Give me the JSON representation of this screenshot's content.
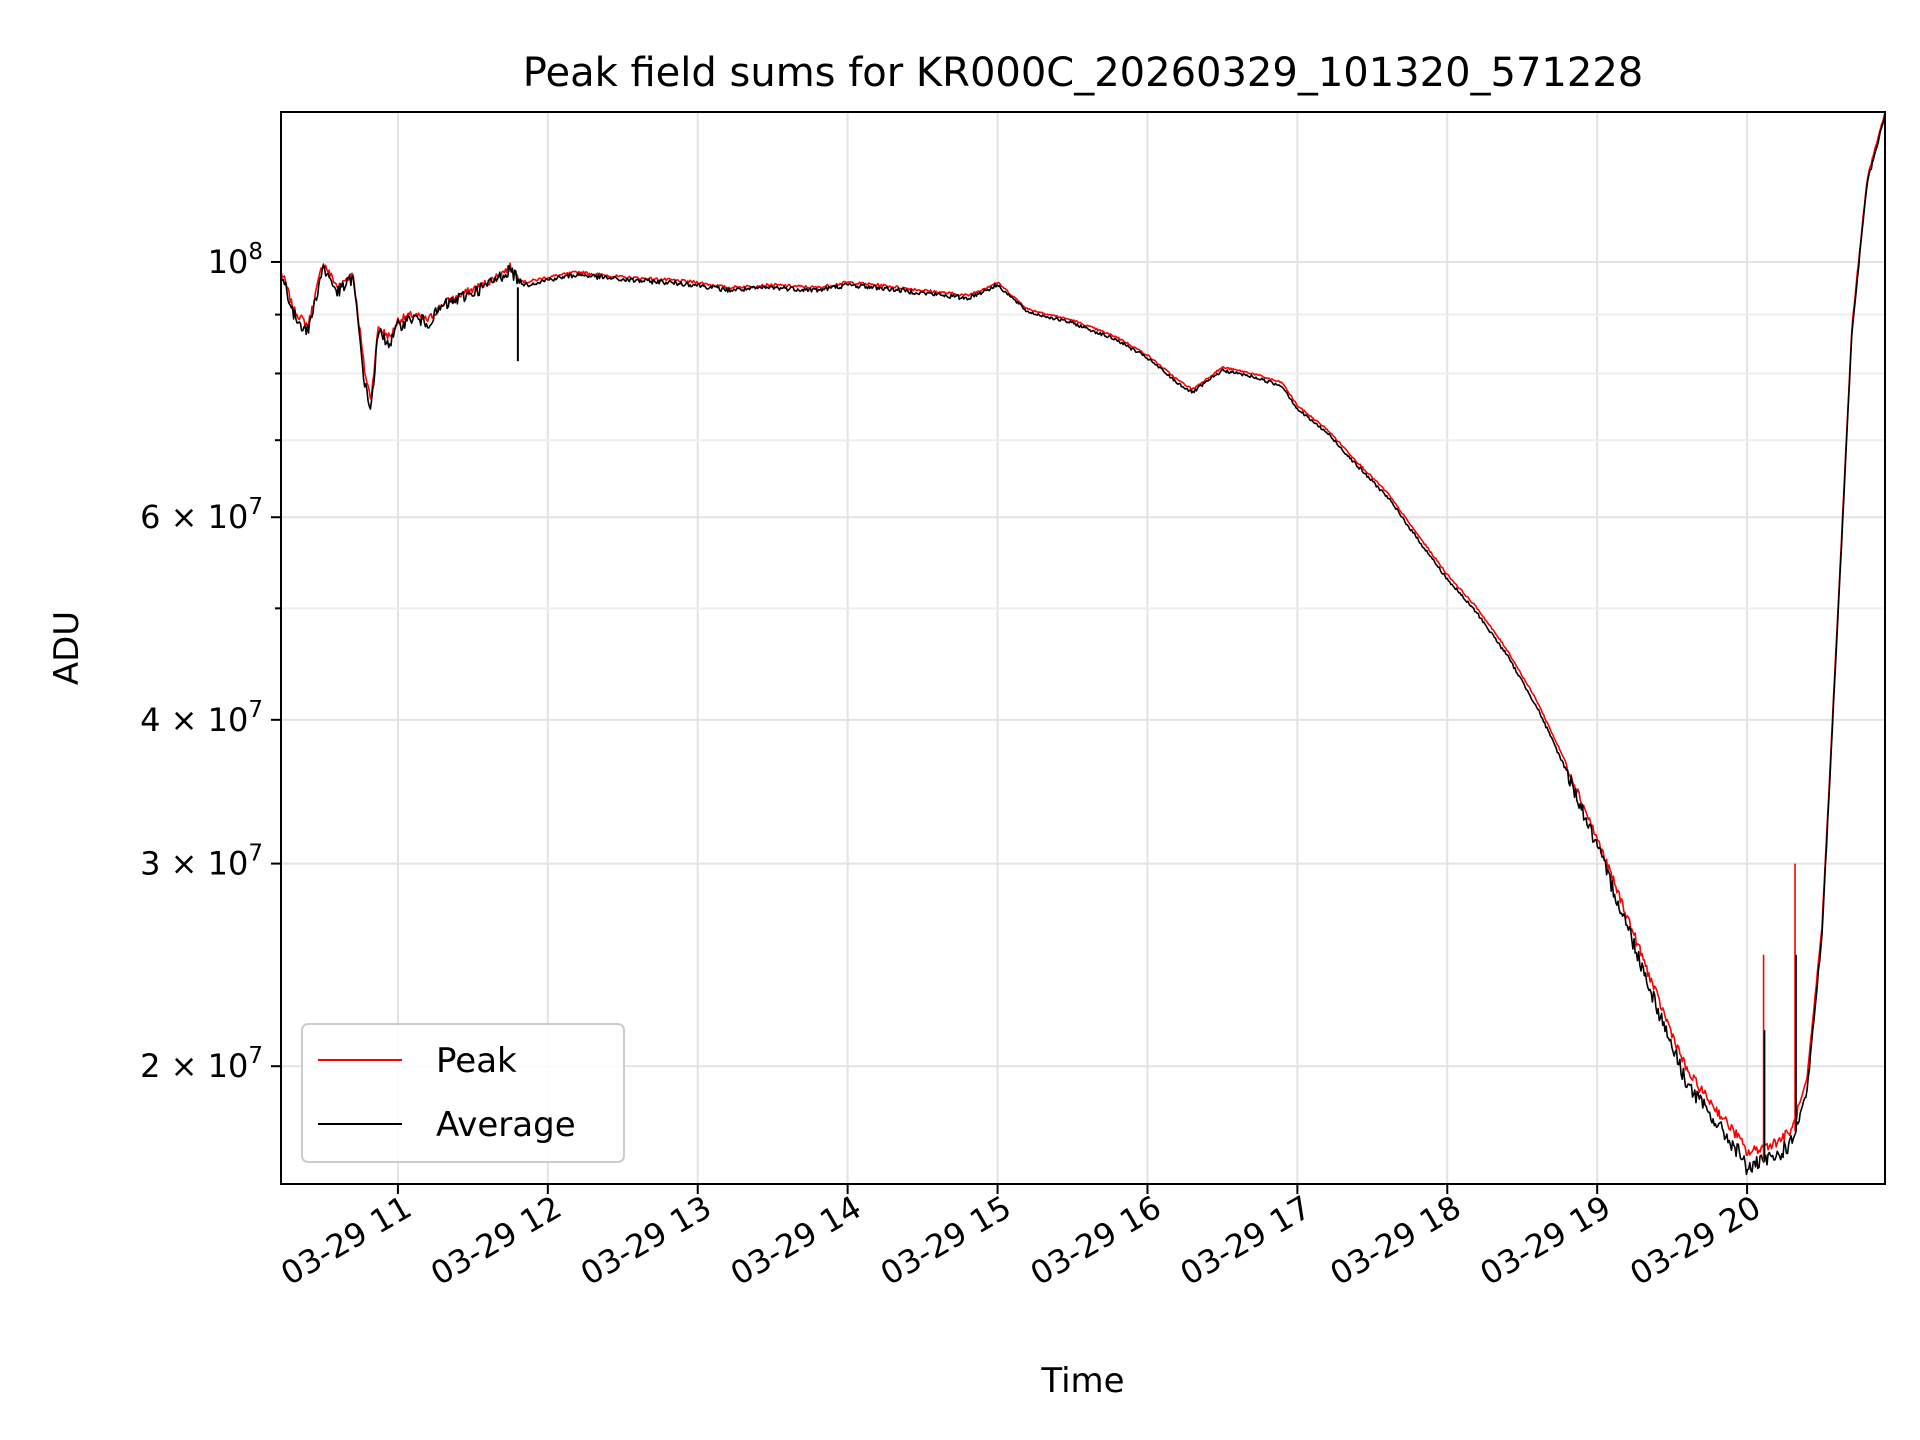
{
  "chart_data": {
    "type": "line",
    "title": "Peak field sums for KR000C_20260329_101320_571228",
    "xlabel": "Time",
    "ylabel": "ADU",
    "x_unit": "hours (time of day on 03-29)",
    "xlim": [
      10.22,
      20.92
    ],
    "ylim": [
      15800000,
      135000000
    ],
    "yscale": "log",
    "grid": true,
    "legend_position": "lower-left",
    "x_ticks": [
      {
        "value": 11,
        "label": "03-29 11"
      },
      {
        "value": 12,
        "label": "03-29 12"
      },
      {
        "value": 13,
        "label": "03-29 13"
      },
      {
        "value": 14,
        "label": "03-29 14"
      },
      {
        "value": 15,
        "label": "03-29 15"
      },
      {
        "value": 16,
        "label": "03-29 16"
      },
      {
        "value": 17,
        "label": "03-29 17"
      },
      {
        "value": 18,
        "label": "03-29 18"
      },
      {
        "value": 19,
        "label": "03-29 19"
      },
      {
        "value": 20,
        "label": "03-29 20"
      }
    ],
    "y_ticks_major": [
      {
        "value": 20000000,
        "base": "2 × 10",
        "exp": "7"
      },
      {
        "value": 30000000,
        "base": "3 × 10",
        "exp": "7"
      },
      {
        "value": 40000000,
        "base": "4 × 10",
        "exp": "7"
      },
      {
        "value": 60000000,
        "base": "6 × 10",
        "exp": "7"
      },
      {
        "value": 100000000,
        "base": "10",
        "exp": "8"
      }
    ],
    "y_ticks_minor": [
      50000000,
      70000000,
      80000000,
      90000000
    ],
    "series": [
      {
        "name": "Peak",
        "color": "#ff0000",
        "x": [
          10.22,
          10.25,
          10.3,
          10.4,
          10.5,
          10.6,
          10.7,
          10.78,
          10.82,
          10.87,
          10.9,
          10.95,
          11.0,
          11.1,
          11.2,
          11.3,
          11.45,
          11.6,
          11.75,
          11.8,
          11.85,
          12.0,
          12.2,
          12.5,
          12.8,
          13.0,
          13.2,
          13.5,
          13.8,
          14.0,
          14.2,
          14.5,
          14.8,
          15.0,
          15.2,
          15.5,
          15.8,
          16.0,
          16.2,
          16.3,
          16.5,
          16.7,
          16.9,
          17.0,
          17.2,
          17.4,
          17.6,
          17.8,
          18.0,
          18.2,
          18.4,
          18.6,
          18.8,
          19.0,
          19.2,
          19.4,
          19.6,
          19.8,
          19.95,
          20.0,
          20.1,
          20.2,
          20.3,
          20.4,
          20.5,
          20.6,
          20.7,
          20.8,
          20.92
        ],
        "y": [
          98000000,
          96000000,
          91000000,
          88000000,
          100000000,
          95000000,
          98000000,
          80000000,
          76000000,
          88000000,
          87000000,
          86000000,
          89000000,
          90000000,
          89000000,
          92000000,
          94000000,
          96000000,
          99000000,
          97000000,
          96000000,
          97000000,
          98000000,
          97000000,
          96500000,
          96000000,
          95000000,
          95500000,
          95000000,
          96000000,
          95500000,
          94500000,
          93500000,
          96000000,
          91000000,
          89000000,
          86000000,
          83000000,
          79000000,
          77500000,
          81000000,
          80000000,
          78500000,
          75000000,
          71500000,
          67000000,
          63000000,
          58000000,
          53500000,
          50000000,
          46000000,
          41500000,
          36500000,
          31500000,
          27000000,
          23000000,
          19800000,
          18300000,
          17300000,
          16800000,
          17000000,
          17200000,
          17600000,
          19500000,
          26500000,
          48000000,
          88000000,
          118000000,
          135000000
        ]
      },
      {
        "name": "Average",
        "color": "#000000",
        "x": [
          10.22,
          10.25,
          10.3,
          10.4,
          10.5,
          10.6,
          10.7,
          10.78,
          10.82,
          10.87,
          10.9,
          10.95,
          11.0,
          11.1,
          11.2,
          11.3,
          11.45,
          11.6,
          11.75,
          11.8,
          11.85,
          12.0,
          12.2,
          12.5,
          12.8,
          13.0,
          13.2,
          13.5,
          13.8,
          14.0,
          14.2,
          14.5,
          14.8,
          15.0,
          15.2,
          15.5,
          15.8,
          16.0,
          16.2,
          16.3,
          16.5,
          16.7,
          16.9,
          17.0,
          17.2,
          17.4,
          17.6,
          17.8,
          18.0,
          18.2,
          18.4,
          18.6,
          18.8,
          19.0,
          19.2,
          19.4,
          19.6,
          19.8,
          19.95,
          20.0,
          20.1,
          20.2,
          20.3,
          20.4,
          20.5,
          20.6,
          20.7,
          20.8,
          20.92
        ],
        "y": [
          97000000,
          95500000,
          90000000,
          87000000,
          99000000,
          94000000,
          97000000,
          78000000,
          74500000,
          87000000,
          86000000,
          85000000,
          88000000,
          89500000,
          88500000,
          91500000,
          93500000,
          95500000,
          98500000,
          96500000,
          95500000,
          96500000,
          97500000,
          96500000,
          96000000,
          95500000,
          94500000,
          95000000,
          94500000,
          95500000,
          95000000,
          94000000,
          93000000,
          95500000,
          90500000,
          88500000,
          85500000,
          82500000,
          78500000,
          77000000,
          80500000,
          79500000,
          78000000,
          74500000,
          71000000,
          66500000,
          62500000,
          57500000,
          53000000,
          49500000,
          45500000,
          41000000,
          36000000,
          31000000,
          26500000,
          22500000,
          19300000,
          17800000,
          16800000,
          16300000,
          16500000,
          16700000,
          17200000,
          19000000,
          26000000,
          47500000,
          87000000,
          117000000,
          134000000
        ]
      }
    ],
    "spikes": [
      {
        "x": 11.8,
        "peak": 82000000,
        "average": 82000000,
        "series": "Average"
      },
      {
        "x": 20.11,
        "peak": 25000000,
        "average": 21500000,
        "series": "Peak"
      },
      {
        "x": 20.32,
        "peak": 30000000,
        "average": 25000000,
        "series": "Peak"
      }
    ]
  }
}
